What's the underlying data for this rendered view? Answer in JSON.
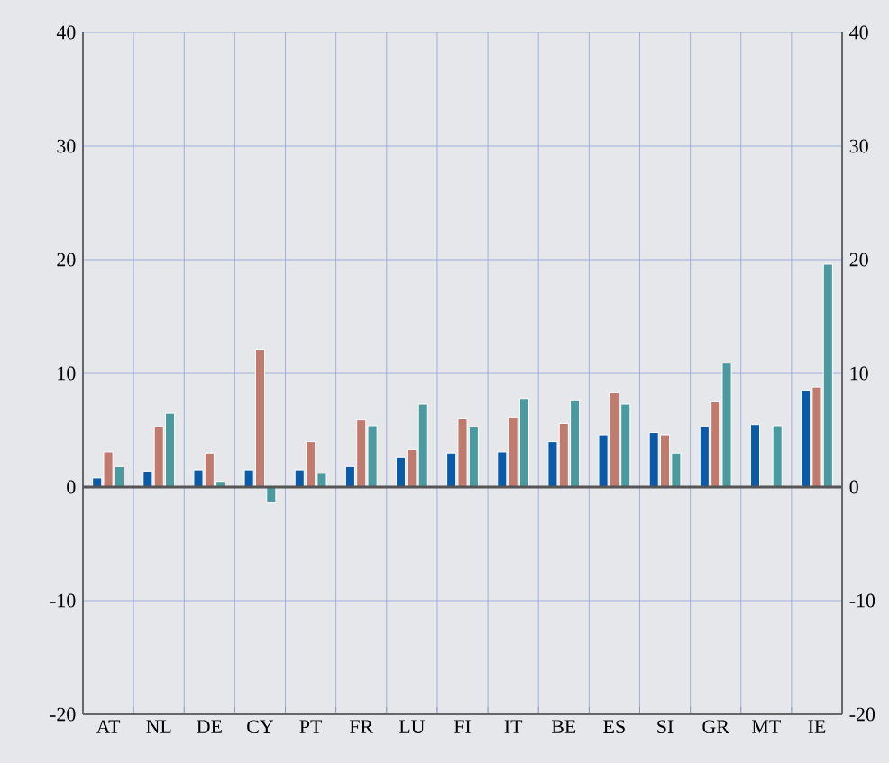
{
  "chart_data": {
    "type": "bar",
    "categories": [
      "AT",
      "NL",
      "DE",
      "CY",
      "PT",
      "FR",
      "LU",
      "FI",
      "IT",
      "BE",
      "ES",
      "SI",
      "GR",
      "MT",
      "IE"
    ],
    "series": [
      {
        "color": "#0b5aa8",
        "values": [
          0.8,
          1.4,
          1.5,
          1.5,
          1.5,
          1.8,
          2.6,
          3.0,
          3.1,
          4.0,
          4.6,
          4.8,
          5.3,
          5.5,
          8.5
        ]
      },
      {
        "color": "#c07a6e",
        "values": [
          3.1,
          5.3,
          3.0,
          12.1,
          4.0,
          5.9,
          3.3,
          6.0,
          6.1,
          5.6,
          8.3,
          4.6,
          7.5,
          null,
          8.8
        ]
      },
      {
        "color": "#4a9aa0",
        "values": [
          1.8,
          6.5,
          0.5,
          -1.4,
          1.2,
          5.4,
          7.3,
          5.3,
          7.8,
          7.6,
          7.3,
          3.0,
          10.9,
          5.4,
          19.6
        ]
      }
    ],
    "ylim": [
      -20,
      40
    ],
    "yticks": [
      -20,
      -10,
      0,
      10,
      20,
      30,
      40
    ],
    "y2lim": [
      -20,
      40
    ],
    "y2ticks": [
      -20,
      -10,
      0,
      10,
      20,
      30,
      40
    ],
    "ref_lines": [
      {
        "axis": "y",
        "value": 0,
        "color": "#555555"
      }
    ],
    "grid": true
  }
}
